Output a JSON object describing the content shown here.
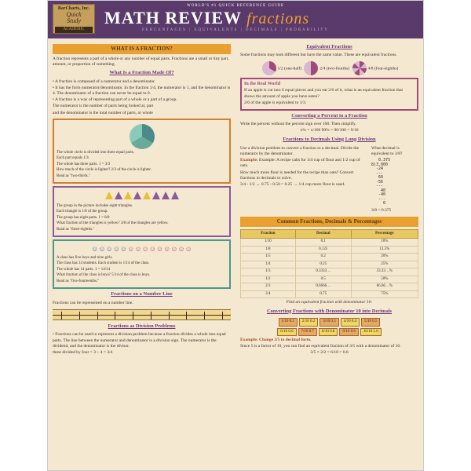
{
  "badge": {
    "line1": "BarCharts, Inc.",
    "line2": "Quick",
    "line3": "Study",
    "line4": "ACADEMIC"
  },
  "header": {
    "worlds": "WORLD'S #1 QUICK REFERENCE GUIDE",
    "title_main": "MATH REVIEW",
    "title_sub": "fractions",
    "subtitle": "PERCENTAGES | EQUIVALENTS | DECIMALS | PROBABILITY"
  },
  "left": {
    "sh1": "WHAT IS A FRACTION?",
    "intro": "A fraction represents a part of a whole or any number of equal parts. Fractions are a small or tiny part, amount, or proportion of something.",
    "made_of_h": "What Is a Fraction Made Of?",
    "made1": "• A fraction is composed of a numerator and a denominator.",
    "made2": "• It has the form numerator/denominator. In the fraction 1/4, the numerator is 1, and the denominator is 4. The denominator of a fraction can never be equal to 0.",
    "made3": "• A fraction is a way of representing part of a whole or a part of a group.",
    "made4": "The numerator is the number of parts being looked at, part",
    "made5": "and the denominator is the total number of parts, or whole",
    "card1": {
      "l1": "The whole circle is divided into three equal parts.",
      "l2": "Each part equals 1/3.",
      "l3": "The whole has three parts. 1 = 3/3",
      "q": "How much of the circle is lighter? 2/3 of the circle is lighter.",
      "r": "Read as \"two-thirds.\""
    },
    "card2": {
      "l1": "The group in the picture includes eight triangles.",
      "l2": "Each triangle is 1/8 of the group.",
      "l3": "The group has eight parts. 1 = 8/8",
      "q": "What fraction of the triangles is yellow? 3/8 of the triangles are yellow.",
      "r": "Read as \"three-eighths.\""
    },
    "card3": {
      "l1": "A class has five boys and nine girls.",
      "l2": "The class has 14 students. Each student is 1/14 of the class.",
      "l3": "The whole has 14 parts. 1 = 14/14",
      "q": "What fraction of the class is boys? 5/14 of the class is boys.",
      "r": "Read as \"five-fourteenths.\""
    },
    "numline_h": "Fractions on a Number Line",
    "numline_t": "Fractions can be represented on a number line.",
    "divprob_h": "Fractions as Division Problems",
    "divprob_t": "• Fractions can be used to represent a division problem because a fraction divides a whole into equal parts. The line between the numerator and denominator is a division sign. The numerator is the dividend, and the denominator is the divisor.",
    "divprob_ex": "three divided by four = 3 ÷ 4 = 3/4"
  },
  "right": {
    "equiv_h": "Equivalent Fractions",
    "equiv_t": "Some fractions may look different but have the same value. These are equivalent fractions.",
    "ef": [
      "1/2 (one-half)",
      "2/4 (two-fourths)",
      "4/8 (four-eighths)"
    ],
    "rw_h": "In the Real World",
    "rw_t": "If an apple is cut into 6 equal pieces and you eat 2/6 of it, what is an equivalent fraction that shows the amount of apple you have eaten?",
    "rw_a": "2/6 of the apple is equivalent to 1/3.",
    "pct_h": "Converting a Percent to a Fraction",
    "pct_t": "Write the percent without the percent sign over 100. Then simplify.",
    "pct_ex": "x% = x/100     90% = 90/100 = 9/10",
    "f2d_h": "Fractions to Decimals Using Long Division",
    "f2d_t": "Use a division problem to convert a fraction to a decimal. Divide the numerator by the denominator.",
    "f2d_ex1": "Example: A recipe calls for 3/4 cup of flour and 1/2 cup of oats.",
    "f2d_ex2": "How much more flour is needed for the recipe than oats? Convert fractions to decimals to solve.",
    "f2d_ex3": "3/4 - 1/2 → 0.75 - 0.50 = 0.25 → 1/4 cup more flour is used.",
    "f2d_side": "What decimal is equivalent to 3/8?",
    "longdiv": "   0.375\n8)3.000\n  -24\n  ---\n   60\n  -56\n  ---\n    40\n   -40\n   ---\n     0",
    "f2d_ans": "3/8 = 0.375",
    "table_h": "Common Fractions, Decimals & Percentages",
    "table": {
      "cols": [
        "Fraction",
        "Decimal",
        "Percentage"
      ],
      "rows": [
        [
          "1/10",
          "0.1",
          "10%"
        ],
        [
          "1/8",
          "0.125",
          "12.5%"
        ],
        [
          "1/5",
          "0.2",
          "20%"
        ],
        [
          "1/4",
          "0.25",
          "25%"
        ],
        [
          "1/3",
          "0.3333…",
          "33.33…%"
        ],
        [
          "1/2",
          "0.5",
          "50%"
        ],
        [
          "2/3",
          "0.6666…",
          "66.66…%"
        ],
        [
          "3/4",
          "0.75",
          "75%"
        ]
      ],
      "caption": "Find an equivalent fraction with denominator 10:"
    },
    "d10_h": "Converting Fractions with Denominator 10 into Decimals",
    "d10_boxes": [
      "1/10  0.1",
      "2/10  0.2",
      "3/10  0.3",
      "4/10  0.4",
      "5/10  0.5",
      "6/10  0.6",
      "7/10  0.7",
      "8/10  0.8",
      "9/10  0.9",
      "10/10  1.0"
    ],
    "d10_ex_h": "Example: Change 3/5 to decimal form.",
    "d10_ex_t": "Since 5 is a factor of 10, you can find an equivalent fraction of 3/5 with a denominator of 10.",
    "d10_work": "3/5 × 2/2 = 6/10 = 0.6"
  },
  "colors": {
    "hdr": "#5a3a6a",
    "accent": "#e8a030",
    "purple": "#8a5a9a"
  }
}
